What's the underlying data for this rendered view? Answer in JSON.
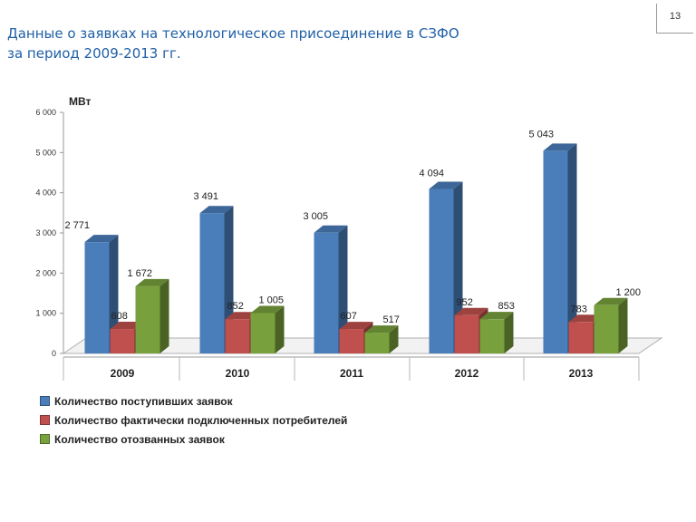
{
  "slide": {
    "title_line1": "Данные о заявках на технологическое присоединение в СЗФО",
    "title_line2": "за период 2009-2013 гг.",
    "page_number": "13"
  },
  "chart_data": {
    "type": "bar",
    "ylabel": "МВт",
    "ylim": [
      0,
      6000
    ],
    "y_ticks": [
      {
        "value": 0,
        "label": "0"
      },
      {
        "value": 1000,
        "label": "1 000"
      },
      {
        "value": 2000,
        "label": "2 000"
      },
      {
        "value": 3000,
        "label": "3 000"
      },
      {
        "value": 4000,
        "label": "4 000"
      },
      {
        "value": 5000,
        "label": "5 000"
      },
      {
        "value": 6000,
        "label": "6 000"
      }
    ],
    "categories": [
      "2009",
      "2010",
      "2011",
      "2012",
      "2013"
    ],
    "series": [
      {
        "name": "Количество поступивших заявок",
        "color": "#4a7ebb",
        "values": [
          2771,
          3491,
          3005,
          4094,
          5043
        ],
        "labels": [
          "2 771",
          "3 491",
          "3 005",
          "4 094",
          "5 043"
        ]
      },
      {
        "name": "Количество фактически подключенных потребителей",
        "color": "#c0504d",
        "values": [
          608,
          852,
          607,
          952,
          783
        ],
        "labels": [
          "608",
          "852",
          "607",
          "952",
          "783"
        ]
      },
      {
        "name": "Количество отозванных заявок",
        "color": "#78a03c",
        "values": [
          1672,
          1005,
          517,
          853,
          1200
        ],
        "labels": [
          "1 672",
          "1 005",
          "517",
          "853",
          "1 200"
        ]
      }
    ],
    "grid": false,
    "legend_position": "bottom-left"
  }
}
